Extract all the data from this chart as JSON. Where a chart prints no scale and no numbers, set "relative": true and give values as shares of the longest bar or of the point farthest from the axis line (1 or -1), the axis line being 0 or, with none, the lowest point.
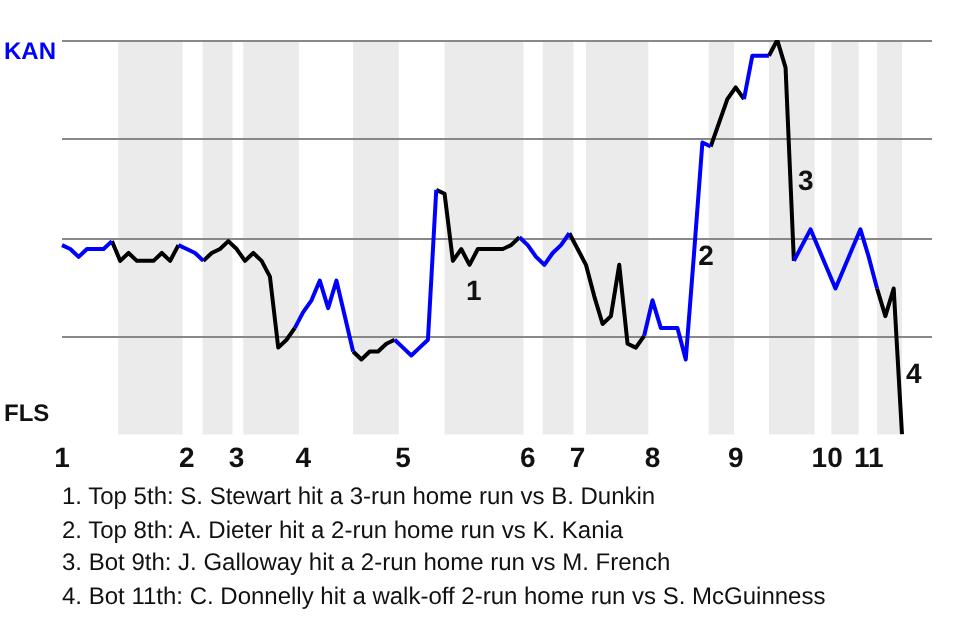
{
  "chart_data": {
    "type": "line",
    "relative": true,
    "marker": "none",
    "legend": false,
    "grid": "y",
    "categories": [
      "1",
      null,
      null,
      null,
      null,
      null,
      null,
      null,
      null,
      null,
      null,
      null,
      null,
      null,
      null,
      "2",
      null,
      null,
      null,
      null,
      null,
      "3",
      null,
      null,
      null,
      null,
      null,
      null,
      null,
      "4",
      null,
      null,
      null,
      null,
      null,
      null,
      null,
      null,
      null,
      null,
      null,
      "5",
      null,
      null,
      null,
      null,
      null,
      null,
      null,
      null,
      null,
      null,
      null,
      null,
      null,
      null,
      "6",
      null,
      null,
      null,
      null,
      null,
      "7",
      null,
      null,
      null,
      null,
      null,
      null,
      null,
      null,
      "8",
      null,
      null,
      null,
      null,
      null,
      null,
      null,
      null,
      null,
      "9",
      null,
      null,
      null,
      null,
      null,
      null,
      null,
      null,
      null,
      null,
      "10",
      null,
      null,
      null,
      null,
      "11",
      null,
      null,
      null,
      null
    ],
    "series": [
      {
        "color": "#0000ff",
        "values": [
          0.48,
          0.47,
          0.45,
          0.47,
          0.47,
          0.47,
          0.49,
          null,
          null,
          null,
          null,
          null,
          null,
          null,
          0.48,
          0.47,
          0.46,
          0.44,
          null,
          null,
          null,
          null,
          null,
          null,
          null,
          null,
          null,
          null,
          0.27,
          0.31,
          0.34,
          0.39,
          0.32,
          0.39,
          0.3,
          0.21,
          null,
          null,
          null,
          null,
          0.24,
          0.22,
          0.2,
          0.22,
          0.24,
          0.62,
          null,
          null,
          null,
          null,
          null,
          null,
          null,
          null,
          null,
          0.5,
          0.48,
          0.45,
          0.43,
          0.46,
          0.48,
          0.51,
          null,
          null,
          null,
          null,
          null,
          null,
          null,
          null,
          0.25,
          0.34,
          0.27,
          0.27,
          0.27,
          0.19,
          0.46,
          0.74,
          0.73,
          null,
          null,
          null,
          0.85,
          0.96,
          0.96,
          0.96,
          null,
          null,
          0.44,
          0.48,
          0.52,
          0.47,
          0.42,
          0.37,
          0.42,
          0.47,
          0.52,
          0.45,
          0.37,
          null,
          null,
          null
        ]
      },
      {
        "color": "#000000",
        "values": [
          null,
          null,
          null,
          null,
          null,
          null,
          0.49,
          0.44,
          0.46,
          0.44,
          0.44,
          0.44,
          0.46,
          0.44,
          0.48,
          null,
          null,
          0.44,
          0.46,
          0.47,
          0.49,
          0.47,
          0.44,
          0.46,
          0.44,
          0.4,
          0.22,
          0.24,
          0.27,
          null,
          null,
          null,
          null,
          null,
          null,
          0.21,
          0.19,
          0.21,
          0.21,
          0.23,
          0.24,
          null,
          null,
          null,
          null,
          0.62,
          0.61,
          0.44,
          0.47,
          0.43,
          0.47,
          0.47,
          0.47,
          0.47,
          0.48,
          0.5,
          null,
          null,
          null,
          null,
          null,
          0.51,
          0.47,
          0.43,
          0.35,
          0.28,
          0.3,
          0.43,
          0.23,
          0.22,
          0.25,
          null,
          null,
          null,
          null,
          null,
          null,
          null,
          0.73,
          0.79,
          0.85,
          0.88,
          0.85,
          null,
          null,
          0.96,
          1,
          0.93,
          0.44,
          null,
          null,
          null,
          null,
          null,
          null,
          null,
          null,
          null,
          0.37,
          0.3,
          0.37,
          0
        ]
      }
    ],
    "annotations": [
      "1",
      "2",
      "3",
      "4",
      "KAN",
      "FLS",
      "1. Top 5th: S. Stewart hit a 3-run home run vs B. Dunkin",
      "2. Top 8th: A. Dieter hit a 2-run home run vs K. Kania",
      "3. Bot 9th: J. Galloway hit a 2-run home run vs M. French",
      "4. Bot 11th: C. Donnelly hit a walk-off 2-run home run vs S. McGuinness"
    ]
  }
}
